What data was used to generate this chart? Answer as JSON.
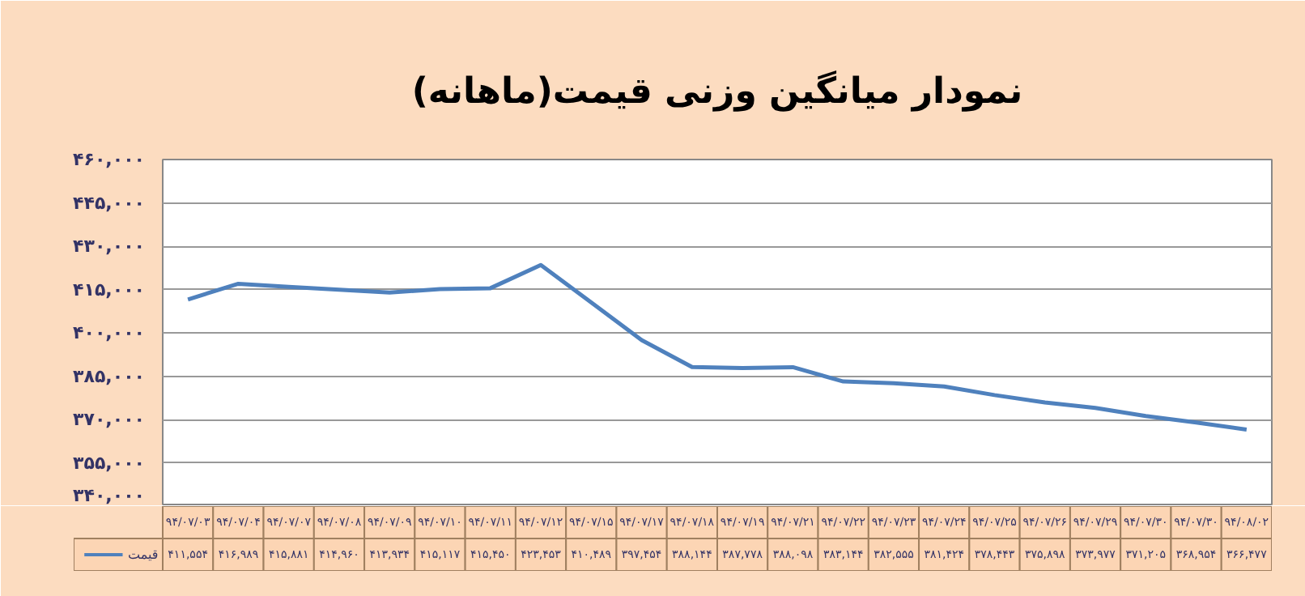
{
  "chart_data": {
    "type": "line",
    "title": "نمودار میانگین وزنی قیمت(ماهانه)",
    "categories": [
      "۹۴/۰۷/۰۳",
      "۹۴/۰۷/۰۴",
      "۹۴/۰۷/۰۷",
      "۹۴/۰۷/۰۸",
      "۹۴/۰۷/۰۹",
      "۹۴/۰۷/۱۰",
      "۹۴/۰۷/۱۱",
      "۹۴/۰۷/۱۲",
      "۹۴/۰۷/۱۵",
      "۹۴/۰۷/۱۷",
      "۹۴/۰۷/۱۸",
      "۹۴/۰۷/۱۹",
      "۹۴/۰۷/۲۱",
      "۹۴/۰۷/۲۲",
      "۹۴/۰۷/۲۳",
      "۹۴/۰۷/۲۴",
      "۹۴/۰۷/۲۵",
      "۹۴/۰۷/۲۶",
      "۹۴/۰۷/۲۹",
      "۹۴/۰۷/۳۰",
      "۹۴/۰۷/۳۰",
      "۹۴/۰۸/۰۲"
    ],
    "series": [
      {
        "name": "قیمت",
        "color": "#4f81bd",
        "values": [
          411554,
          416989,
          415881,
          414960,
          413934,
          415117,
          415450,
          423453,
          410489,
          397454,
          388144,
          387778,
          388098,
          383144,
          382555,
          381424,
          378443,
          375898,
          373977,
          371205,
          368954,
          366477
        ],
        "value_labels": [
          "۴۱۱,۵۵۴",
          "۴۱۶,۹۸۹",
          "۴۱۵,۸۸۱",
          "۴۱۴,۹۶۰",
          "۴۱۳,۹۳۴",
          "۴۱۵,۱۱۷",
          "۴۱۵,۴۵۰",
          "۴۲۳,۴۵۳",
          "۴۱۰,۴۸۹",
          "۳۹۷,۴۵۴",
          "۳۸۸,۱۴۴",
          "۳۸۷,۷۷۸",
          "۳۸۸,۰۹۸",
          "۳۸۳,۱۴۴",
          "۳۸۲,۵۵۵",
          "۳۸۱,۴۲۴",
          "۳۷۸,۴۴۳",
          "۳۷۵,۸۹۸",
          "۳۷۳,۹۷۷",
          "۳۷۱,۲۰۵",
          "۳۶۸,۹۵۴",
          "۳۶۶,۴۷۷"
        ]
      }
    ],
    "ylim": [
      340000,
      460000
    ],
    "yticks": [
      {
        "value": 340000,
        "label": "۳۴۰,۰۰۰"
      },
      {
        "value": 355000,
        "label": "۳۵۵,۰۰۰"
      },
      {
        "value": 370000,
        "label": "۳۷۰,۰۰۰"
      },
      {
        "value": 385000,
        "label": "۳۸۵,۰۰۰"
      },
      {
        "value": 400000,
        "label": "۴۰۰,۰۰۰"
      },
      {
        "value": 415000,
        "label": "۴۱۵,۰۰۰"
      },
      {
        "value": 430000,
        "label": "۴۳۰,۰۰۰"
      },
      {
        "value": 445000,
        "label": "۴۴۵,۰۰۰"
      },
      {
        "value": 460000,
        "label": "۴۶۰,۰۰۰"
      }
    ],
    "grid": "y",
    "legend": "bottom",
    "tick_labels": "y",
    "line_style": "solid"
  }
}
